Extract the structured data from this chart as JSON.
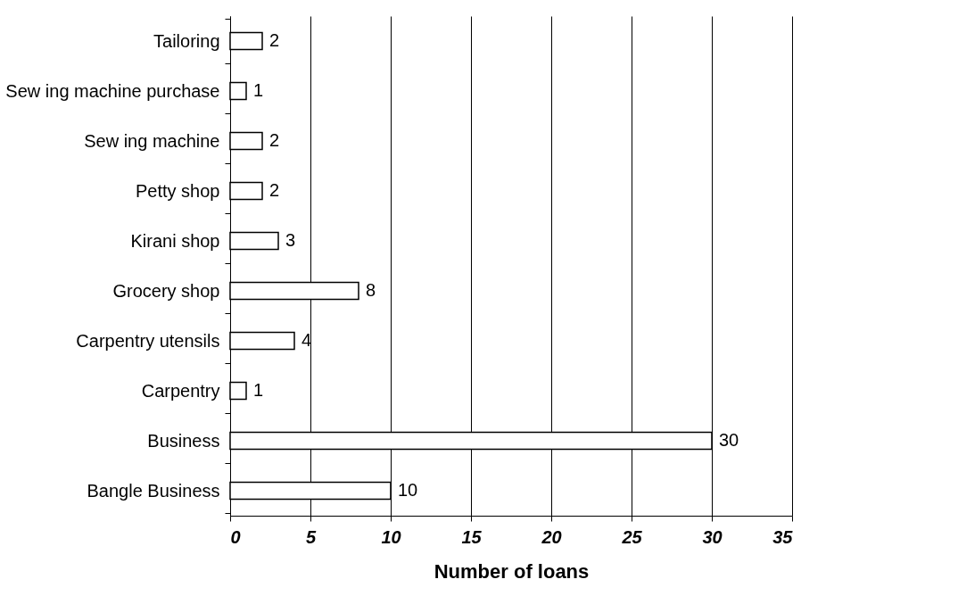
{
  "chart_data": {
    "type": "bar",
    "orientation": "horizontal",
    "xlabel": "Number of loans",
    "categories": [
      "Tailoring",
      "Sew ing machine purchase",
      "Sew ing machine",
      "Petty shop",
      "Kirani shop",
      "Grocery shop",
      "Carpentry utensils",
      "Carpentry",
      "Business",
      "Bangle Business"
    ],
    "values": [
      2,
      1,
      2,
      2,
      3,
      8,
      4,
      1,
      30,
      10
    ],
    "color": "#ffffff",
    "xlim": [
      0,
      35
    ],
    "xticks": [
      0,
      5,
      10,
      15,
      20,
      25,
      30,
      35
    ],
    "grid": "x",
    "data_labels": true
  }
}
